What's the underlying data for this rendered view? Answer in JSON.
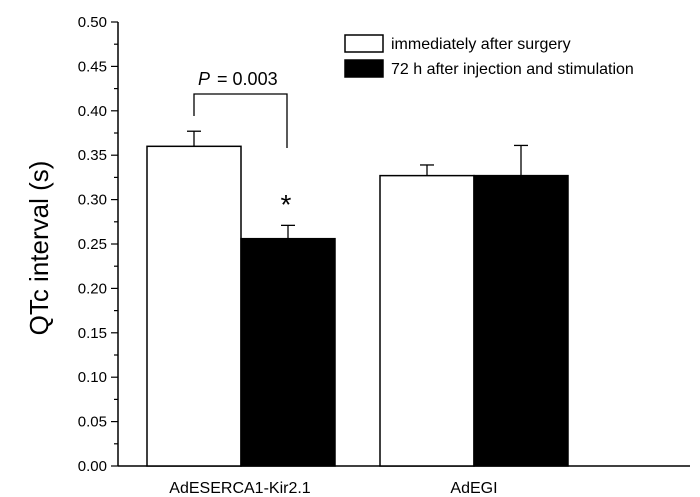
{
  "chart_data": {
    "type": "bar",
    "title": "",
    "xlabel": "",
    "ylabel": "QTc  interval (s)",
    "ylim": [
      0.0,
      0.5
    ],
    "yticks": [
      "0.00",
      "0.05",
      "0.10",
      "0.15",
      "0.20",
      "0.25",
      "0.30",
      "0.35",
      "0.40",
      "0.45",
      "0.50"
    ],
    "categories": [
      "AdESERCA1-Kir2.1",
      "AdEGI"
    ],
    "series": [
      {
        "name": "immediately after surgery",
        "fill": "#ffffff",
        "values": [
          0.36,
          0.327
        ],
        "errors": [
          0.017,
          0.012
        ]
      },
      {
        "name": "72 h after injection and stimulation",
        "fill": "#000000",
        "values": [
          0.256,
          0.327
        ],
        "errors": [
          0.015,
          0.034
        ]
      }
    ],
    "legend_position": "top-right",
    "annotations": {
      "p_label": "P",
      "p_value": "= 0.003",
      "significance": "*"
    }
  }
}
